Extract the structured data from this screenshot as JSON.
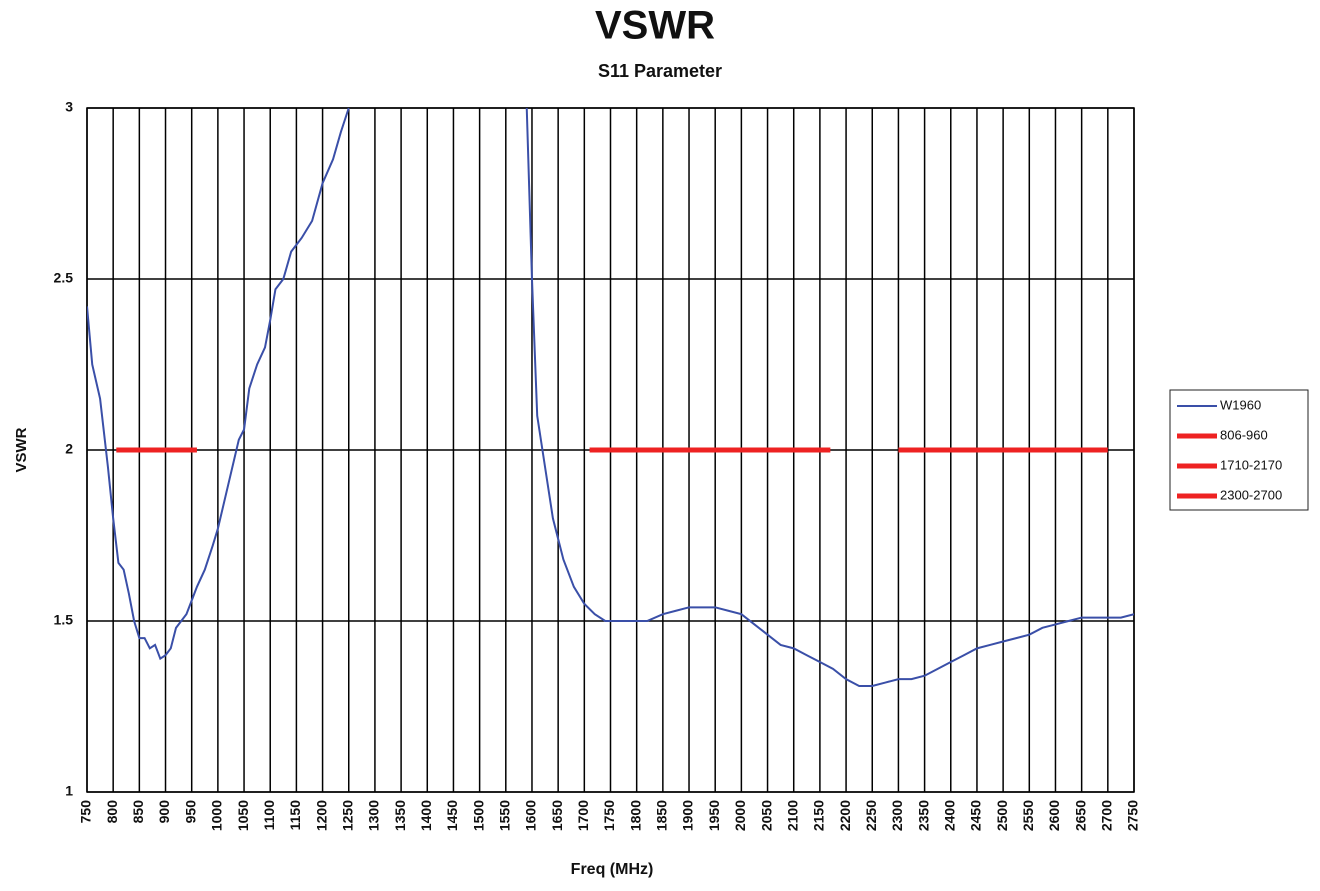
{
  "chart_data": {
    "type": "line",
    "title": "VSWR",
    "subtitle": "S11 Parameter",
    "xlabel": "Freq (MHz)",
    "ylabel": "VSWR",
    "xlim": [
      750,
      2750
    ],
    "ylim": [
      1,
      3
    ],
    "xticks": [
      750,
      800,
      850,
      900,
      950,
      1000,
      1050,
      1100,
      1150,
      1200,
      1250,
      1300,
      1350,
      1400,
      1450,
      1500,
      1550,
      1600,
      1650,
      1700,
      1750,
      1800,
      1850,
      1900,
      1950,
      2000,
      2050,
      2100,
      2150,
      2200,
      2250,
      2300,
      2350,
      2400,
      2450,
      2500,
      2550,
      2600,
      2650,
      2700,
      2750
    ],
    "yticks": [
      1,
      1.5,
      2,
      2.5,
      3
    ],
    "grid": true,
    "legend": "right",
    "series": [
      {
        "name": "W1960",
        "color": "#3a4fa8",
        "width": 2,
        "x": [
          750,
          760,
          775,
          790,
          800,
          810,
          820,
          830,
          840,
          850,
          860,
          870,
          880,
          890,
          900,
          910,
          920,
          930,
          940,
          950,
          960,
          975,
          990,
          1000,
          1020,
          1040,
          1050,
          1060,
          1075,
          1090,
          1100,
          1110,
          1125,
          1140,
          1160,
          1180,
          1200,
          1220,
          1235,
          1250,
          1420,
          1590,
          1600,
          1610,
          1625,
          1640,
          1660,
          1680,
          1700,
          1720,
          1740,
          1760,
          1780,
          1800,
          1820,
          1850,
          1875,
          1900,
          1925,
          1950,
          1975,
          2000,
          2025,
          2050,
          2075,
          2100,
          2125,
          2150,
          2175,
          2200,
          2225,
          2250,
          2275,
          2300,
          2325,
          2350,
          2375,
          2400,
          2425,
          2450,
          2475,
          2500,
          2525,
          2550,
          2575,
          2600,
          2625,
          2650,
          2675,
          2700,
          2725,
          2750
        ],
        "values": [
          2.42,
          2.25,
          2.15,
          1.95,
          1.8,
          1.67,
          1.65,
          1.58,
          1.5,
          1.45,
          1.45,
          1.42,
          1.43,
          1.39,
          1.4,
          1.42,
          1.48,
          1.5,
          1.52,
          1.56,
          1.6,
          1.65,
          1.72,
          1.77,
          1.9,
          2.03,
          2.06,
          2.18,
          2.25,
          2.3,
          2.38,
          2.47,
          2.5,
          2.58,
          2.62,
          2.67,
          2.78,
          2.85,
          2.93,
          3.0,
          null,
          3.0,
          2.5,
          2.1,
          1.95,
          1.8,
          1.68,
          1.6,
          1.55,
          1.52,
          1.5,
          1.5,
          1.5,
          1.5,
          1.5,
          1.52,
          1.53,
          1.54,
          1.54,
          1.54,
          1.53,
          1.52,
          1.49,
          1.46,
          1.43,
          1.42,
          1.4,
          1.38,
          1.36,
          1.33,
          1.31,
          1.31,
          1.32,
          1.33,
          1.33,
          1.34,
          1.36,
          1.38,
          1.4,
          1.42,
          1.43,
          1.44,
          1.45,
          1.46,
          1.48,
          1.49,
          1.5,
          1.51,
          1.51,
          1.51,
          1.51,
          1.52
        ]
      },
      {
        "name": "806-960",
        "color": "#ee2222",
        "width": 5,
        "x": [
          806,
          960
        ],
        "values": [
          2,
          2
        ]
      },
      {
        "name": "1710-2170",
        "color": "#ee2222",
        "width": 5,
        "x": [
          1710,
          2170
        ],
        "values": [
          2,
          2
        ]
      },
      {
        "name": "2300-2700",
        "color": "#ee2222",
        "width": 5,
        "x": [
          2300,
          2700
        ],
        "values": [
          2,
          2
        ]
      }
    ]
  }
}
